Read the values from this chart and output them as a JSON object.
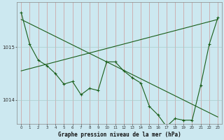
{
  "title": "Graphe pression niveau de la mer (hPa)",
  "background_color": "#cce8f0",
  "grid_color": "#aacccc",
  "line_color": "#1a5e1a",
  "x_values": [
    0,
    1,
    2,
    3,
    4,
    5,
    6,
    7,
    8,
    9,
    10,
    11,
    12,
    13,
    14,
    15,
    16,
    17,
    18,
    19,
    20,
    21,
    22,
    23
  ],
  "y_main": [
    1015.65,
    1015.05,
    1014.75,
    1014.65,
    1014.5,
    1014.3,
    1014.35,
    1014.1,
    1014.22,
    1014.18,
    1014.72,
    1014.72,
    1014.55,
    1014.42,
    1014.32,
    1013.88,
    1013.72,
    1013.5,
    1013.65,
    1013.62,
    1013.62,
    1014.28,
    1015.05,
    1015.55
  ],
  "trend1_x": [
    0,
    23
  ],
  "trend1_y": [
    1015.52,
    1013.68
  ],
  "trend2_x": [
    0,
    23
  ],
  "trend2_y": [
    1014.55,
    1015.52
  ],
  "ylim": [
    1013.55,
    1015.85
  ],
  "ylabel_ticks": [
    1014,
    1015
  ],
  "xlabel_ticks": [
    0,
    1,
    2,
    3,
    4,
    5,
    6,
    7,
    8,
    9,
    10,
    11,
    12,
    13,
    14,
    15,
    16,
    17,
    18,
    19,
    20,
    21,
    22,
    23
  ],
  "figsize": [
    3.2,
    2.0
  ],
  "dpi": 100
}
